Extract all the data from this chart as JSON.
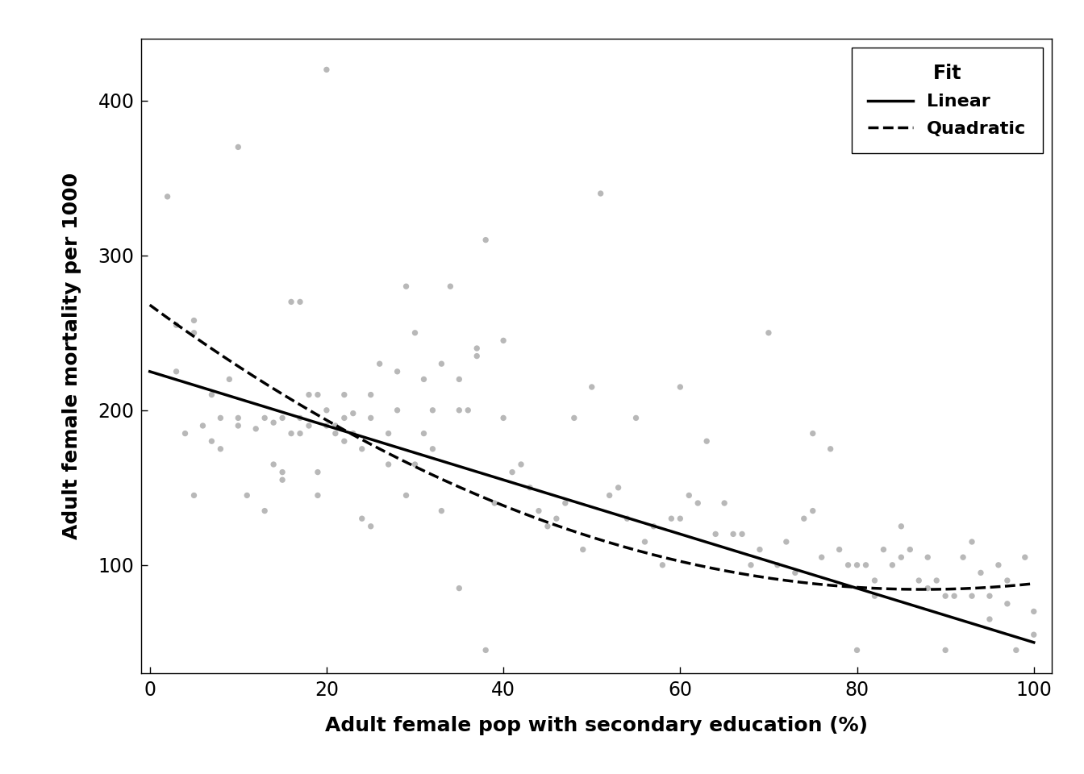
{
  "xlabel": "Adult female pop with secondary education (%)",
  "ylabel": "Adult female mortality per 1000",
  "xlim": [
    -1,
    102
  ],
  "ylim": [
    30,
    440
  ],
  "xticks": [
    0,
    20,
    40,
    60,
    80,
    100
  ],
  "yticks": [
    100,
    200,
    300,
    400
  ],
  "scatter_color": "#b8b8b8",
  "line_color": "#000000",
  "background_color": "#ffffff",
  "legend_title": "Fit",
  "legend_labels": [
    "Linear",
    "Quadratic"
  ],
  "linear_params": [
    225.0,
    -1.75
  ],
  "quadratic_params": [
    268.0,
    -4.2,
    0.024
  ],
  "scatter_x": [
    2,
    3,
    4,
    5,
    5,
    6,
    7,
    8,
    9,
    10,
    10,
    11,
    12,
    13,
    14,
    14,
    15,
    15,
    16,
    16,
    17,
    17,
    18,
    18,
    19,
    19,
    20,
    20,
    21,
    21,
    22,
    22,
    23,
    23,
    24,
    24,
    25,
    25,
    26,
    27,
    28,
    28,
    29,
    30,
    30,
    31,
    31,
    32,
    33,
    34,
    35,
    36,
    37,
    38,
    39,
    40,
    41,
    42,
    43,
    44,
    45,
    46,
    47,
    48,
    49,
    50,
    51,
    52,
    53,
    54,
    55,
    56,
    57,
    58,
    59,
    60,
    61,
    62,
    63,
    64,
    65,
    66,
    67,
    68,
    69,
    70,
    71,
    72,
    73,
    74,
    75,
    76,
    77,
    78,
    79,
    80,
    81,
    82,
    83,
    84,
    85,
    86,
    87,
    88,
    89,
    90,
    91,
    92,
    93,
    94,
    95,
    96,
    97,
    98,
    99,
    100
  ],
  "scatter_y": [
    338,
    225,
    185,
    250,
    258,
    190,
    180,
    175,
    220,
    190,
    370,
    145,
    188,
    135,
    165,
    192,
    195,
    160,
    270,
    185,
    195,
    185,
    210,
    190,
    145,
    210,
    190,
    200,
    190,
    185,
    195,
    180,
    185,
    198,
    175,
    130,
    210,
    195,
    230,
    185,
    225,
    200,
    280,
    250,
    165,
    220,
    185,
    175,
    230,
    280,
    200,
    200,
    240,
    310,
    140,
    195,
    160,
    165,
    150,
    135,
    125,
    130,
    140,
    195,
    110,
    215,
    340,
    145,
    150,
    130,
    195,
    115,
    125,
    100,
    130,
    130,
    145,
    140,
    180,
    120,
    140,
    120,
    120,
    100,
    110,
    250,
    100,
    115,
    95,
    130,
    135,
    105,
    175,
    110,
    100,
    45,
    100,
    80,
    110,
    100,
    105,
    110,
    90,
    105,
    90,
    80,
    80,
    105,
    80,
    95,
    80,
    100,
    90,
    45,
    105,
    70
  ],
  "extra_scatter_x": [
    3,
    5,
    7,
    8,
    10,
    13,
    15,
    17,
    19,
    20,
    22,
    25,
    27,
    29,
    32,
    33,
    35,
    37,
    38,
    40,
    35,
    60,
    75,
    80,
    82,
    85,
    88,
    90,
    93,
    95,
    97,
    100
  ],
  "extra_scatter_y": [
    255,
    145,
    210,
    195,
    195,
    195,
    155,
    270,
    160,
    420,
    210,
    125,
    165,
    145,
    200,
    135,
    220,
    235,
    45,
    245,
    85,
    215,
    185,
    100,
    90,
    125,
    85,
    45,
    115,
    65,
    75,
    55
  ]
}
